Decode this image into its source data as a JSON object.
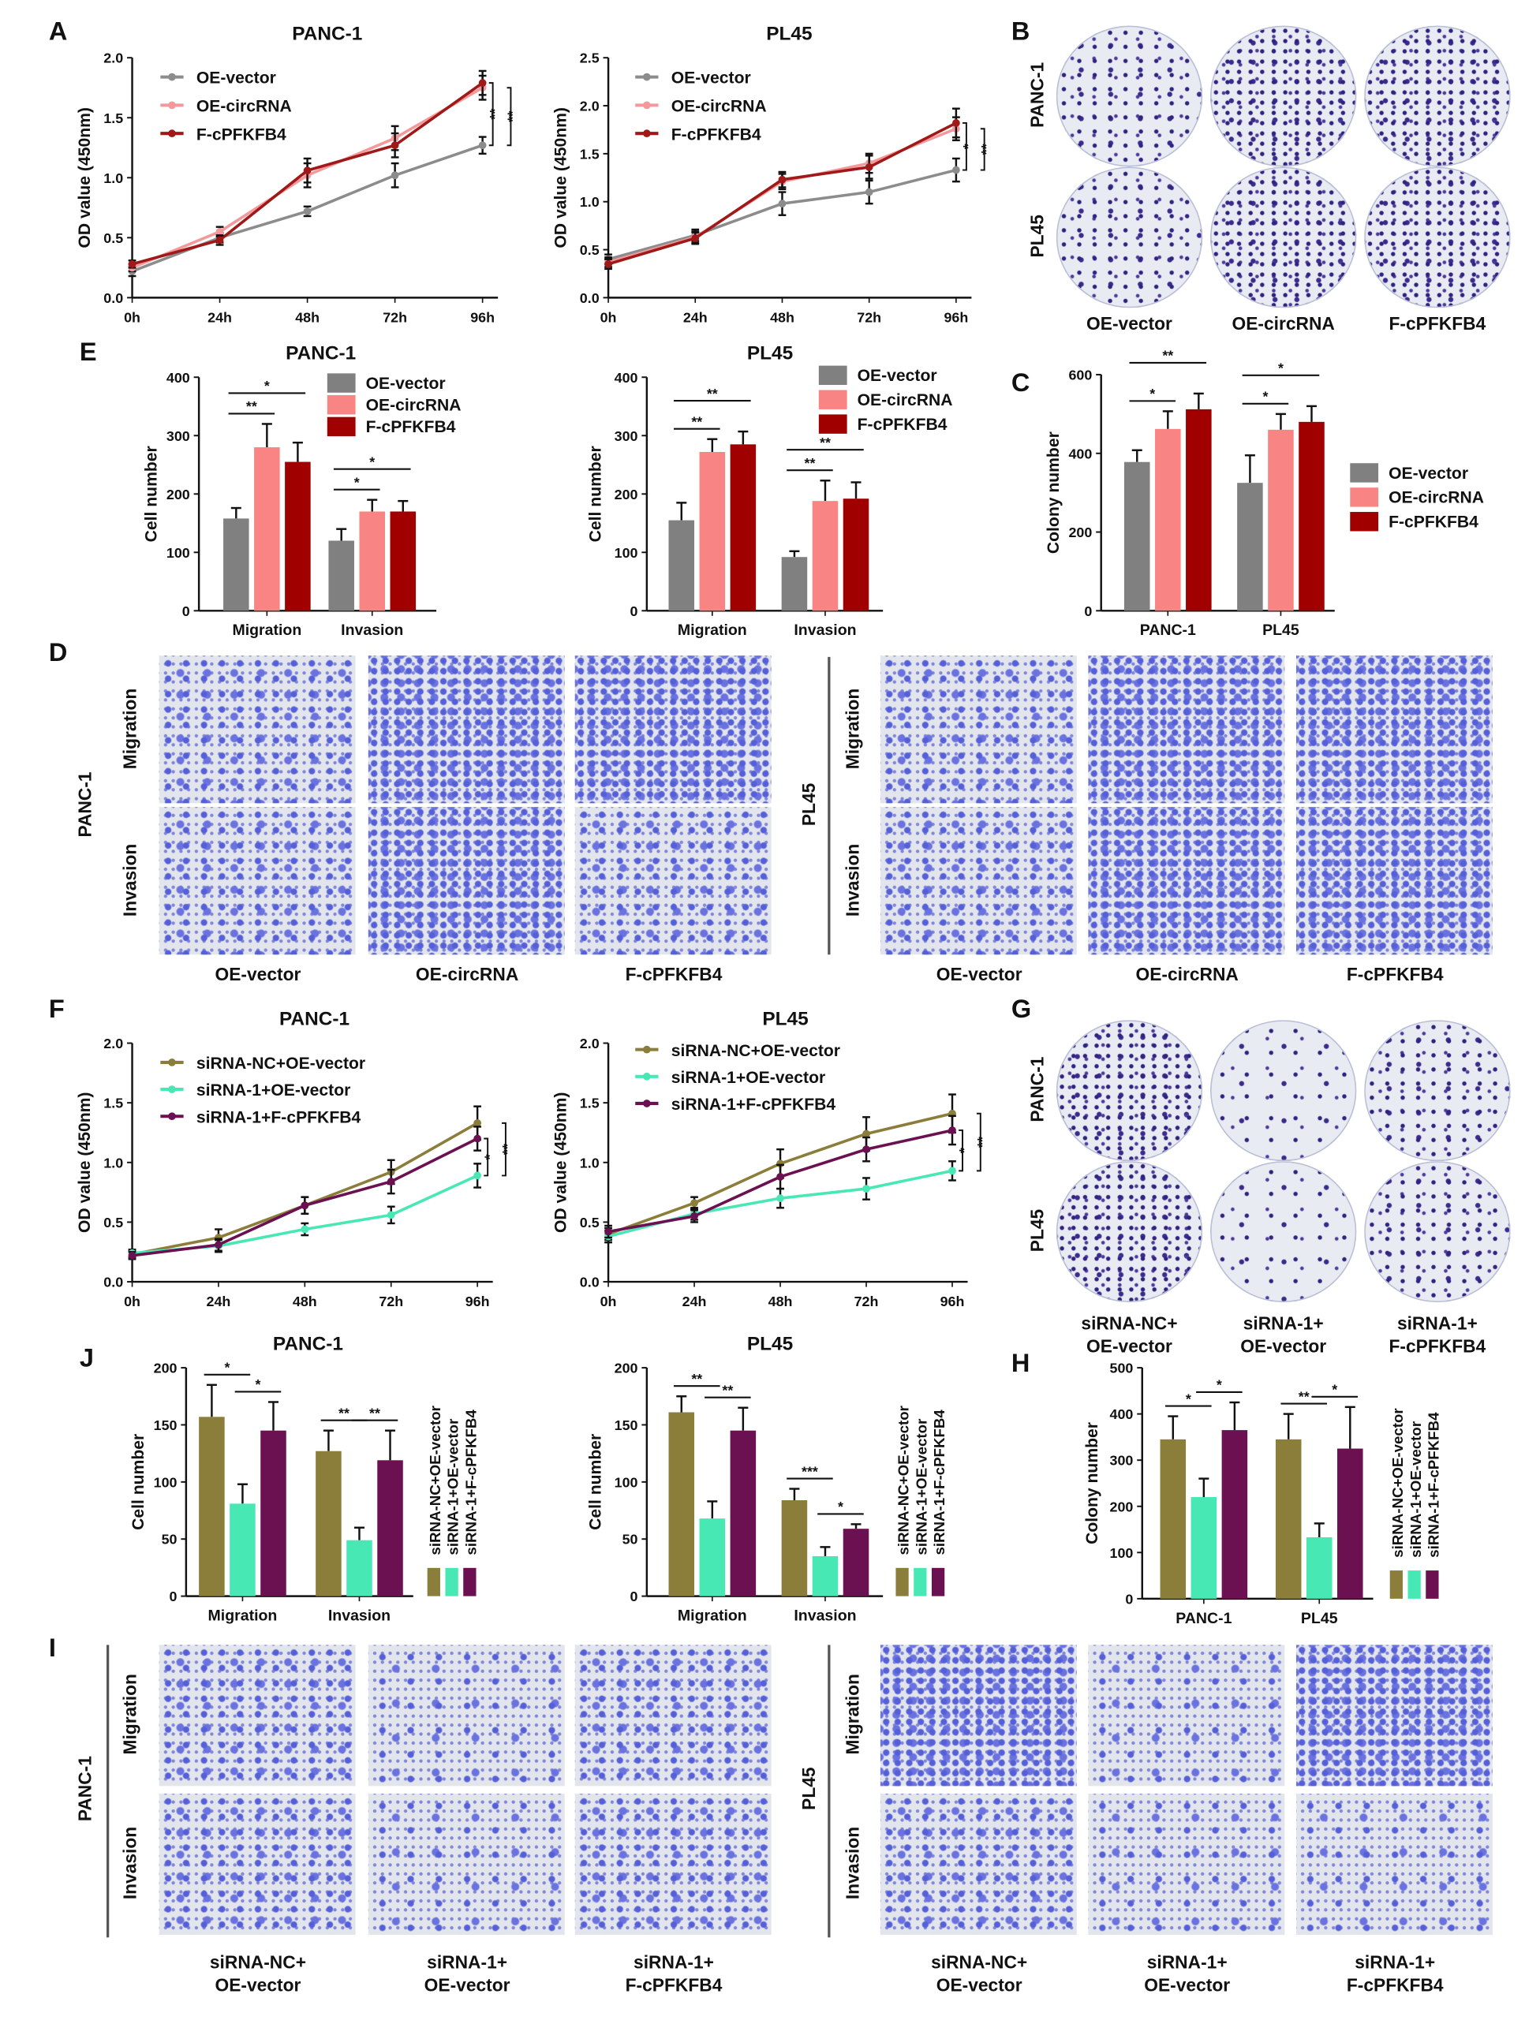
{
  "panel_labels": {
    "A": "A",
    "B": "B",
    "C": "C",
    "D": "D",
    "E": "E",
    "F": "F",
    "G": "G",
    "H": "H",
    "I": "I",
    "J": "J"
  },
  "colony_B": {
    "rows": [
      "PANC-1",
      "PL45"
    ],
    "cols": [
      [
        "OE-vector"
      ],
      [
        "OE-circRNA"
      ],
      [
        "F-cPFKFB4"
      ]
    ]
  },
  "transwell_D": {
    "left": {
      "cell": "PANC-1",
      "rows": [
        "Migration",
        "Invasion"
      ],
      "cols": [
        "OE-vector",
        "OE-circRNA",
        "F-cPFKFB4"
      ]
    },
    "right": {
      "cell": "PL45",
      "rows": [
        "Migration",
        "Invasion"
      ],
      "cols": [
        "OE-vector",
        "OE-circRNA",
        "F-cPFKFB4"
      ]
    }
  },
  "colony_G": {
    "rows": [
      "PANC-1",
      "PL45"
    ],
    "cols": [
      [
        "siRNA-NC+",
        "OE-vector"
      ],
      [
        "siRNA-1+",
        "OE-vector"
      ],
      [
        "siRNA-1+",
        "F-cPFKFB4"
      ]
    ]
  },
  "transwell_I": {
    "left": {
      "cell": "PANC-1",
      "rows": [
        "Migration",
        "Invasion"
      ],
      "cols": [
        [
          "siRNA-NC+",
          "OE-vector"
        ],
        [
          "siRNA-1+",
          "OE-vector"
        ],
        [
          "siRNA-1+",
          "F-cPFKFB4"
        ]
      ]
    },
    "right": {
      "cell": "PL45",
      "rows": [
        "Migration",
        "Invasion"
      ],
      "cols": [
        [
          "siRNA-NC+",
          "OE-vector"
        ],
        [
          "siRNA-1+",
          "OE-vector"
        ],
        [
          "siRNA-1+",
          "F-cPFKFB4"
        ]
      ]
    }
  },
  "chart_data": [
    {
      "id": "A1",
      "panel": "A",
      "type": "line",
      "title": "PANC-1",
      "ylabel": "OD value (450nm)",
      "categories": [
        "0h",
        "24h",
        "48h",
        "72h",
        "96h"
      ],
      "ylim": [
        0,
        2.0
      ],
      "yticks": [
        "0.0",
        "0.5",
        "1.0",
        "1.5",
        "2.0"
      ],
      "series": [
        {
          "name": "OE-vector",
          "color": "#8c8c8c",
          "values": [
            0.22,
            0.5,
            0.72,
            1.02,
            1.27
          ],
          "err": [
            0.04,
            0.04,
            0.04,
            0.1,
            0.07
          ]
        },
        {
          "name": "OE-circRNA",
          "color": "#f4999b",
          "values": [
            0.25,
            0.55,
            1.02,
            1.33,
            1.75
          ],
          "err": [
            0.03,
            0.04,
            0.1,
            0.1,
            0.1
          ]
        },
        {
          "name": "F-cPFKFB4",
          "color": "#a01818",
          "values": [
            0.28,
            0.48,
            1.06,
            1.27,
            1.79
          ],
          "err": [
            0.03,
            0.04,
            0.1,
            0.1,
            0.1
          ]
        }
      ],
      "significance": [
        {
          "a": 2,
          "b": 0,
          "label": "**"
        },
        {
          "a": 1,
          "b": 0,
          "label": "**"
        }
      ]
    },
    {
      "id": "A2",
      "panel": "A",
      "type": "line",
      "title": "PL45",
      "ylabel": "OD value (450nm)",
      "categories": [
        "0h",
        "24h",
        "48h",
        "72h",
        "96h"
      ],
      "ylim": [
        0,
        2.5
      ],
      "yticks": [
        "0.0",
        "0.5",
        "1.0",
        "1.5",
        "2.0",
        "2.5"
      ],
      "series": [
        {
          "name": "OE-vector",
          "color": "#8c8c8c",
          "values": [
            0.4,
            0.65,
            0.98,
            1.1,
            1.33
          ],
          "err": [
            0.05,
            0.06,
            0.12,
            0.12,
            0.12
          ]
        },
        {
          "name": "OE-circRNA",
          "color": "#f4999b",
          "values": [
            0.37,
            0.63,
            1.21,
            1.4,
            1.76
          ],
          "err": [
            0.05,
            0.06,
            0.08,
            0.1,
            0.12
          ]
        },
        {
          "name": "F-cPFKFB4",
          "color": "#a01818",
          "values": [
            0.35,
            0.62,
            1.23,
            1.36,
            1.82
          ],
          "err": [
            0.05,
            0.06,
            0.08,
            0.12,
            0.15
          ]
        }
      ],
      "significance": [
        {
          "a": 2,
          "b": 0,
          "label": "*"
        },
        {
          "a": 1,
          "b": 0,
          "label": "**"
        }
      ]
    },
    {
      "id": "E1",
      "panel": "E",
      "type": "bar",
      "title": "PANC-1",
      "ylabel": "Cell number",
      "categories": [
        "Migration",
        "Invasion"
      ],
      "ylim": [
        0,
        400
      ],
      "yticks": [
        "0",
        "100",
        "200",
        "300",
        "400"
      ],
      "legend_style": "box",
      "series": [
        {
          "name": "OE-vector",
          "color": "#808080",
          "values": [
            158,
            120
          ],
          "err": [
            18,
            20
          ]
        },
        {
          "name": "OE-circRNA",
          "color": "#f88484",
          "values": [
            280,
            170
          ],
          "err": [
            40,
            20
          ]
        },
        {
          "name": "F-cPFKFB4",
          "color": "#a00000",
          "values": [
            255,
            170
          ],
          "err": [
            33,
            18
          ]
        }
      ],
      "significance": [
        {
          "group": 0,
          "a": 0,
          "b": 1,
          "label": "**",
          "level": 0
        },
        {
          "group": 0,
          "a": 0,
          "b": 2,
          "label": "*",
          "level": 1
        },
        {
          "group": 1,
          "a": 0,
          "b": 1,
          "label": "*",
          "level": 0
        },
        {
          "group": 1,
          "a": 0,
          "b": 2,
          "label": "*",
          "level": 1
        }
      ]
    },
    {
      "id": "E2",
      "panel": "E",
      "type": "bar",
      "title": "PL45",
      "ylabel": "Cell number",
      "categories": [
        "Migration",
        "Invasion"
      ],
      "ylim": [
        0,
        400
      ],
      "yticks": [
        "0",
        "100",
        "200",
        "300",
        "400"
      ],
      "legend_style": "box",
      "series": [
        {
          "name": "OE-vector",
          "color": "#808080",
          "values": [
            155,
            92
          ],
          "err": [
            30,
            10
          ]
        },
        {
          "name": "OE-circRNA",
          "color": "#f88484",
          "values": [
            272,
            188
          ],
          "err": [
            22,
            35
          ]
        },
        {
          "name": "F-cPFKFB4",
          "color": "#a00000",
          "values": [
            285,
            192
          ],
          "err": [
            22,
            28
          ]
        }
      ],
      "significance": [
        {
          "group": 0,
          "a": 0,
          "b": 1,
          "label": "**",
          "level": 0
        },
        {
          "group": 0,
          "a": 0,
          "b": 2,
          "label": "**",
          "level": 1
        },
        {
          "group": 1,
          "a": 0,
          "b": 1,
          "label": "**",
          "level": 0
        },
        {
          "group": 1,
          "a": 0,
          "b": 2,
          "label": "**",
          "level": 1
        }
      ]
    },
    {
      "id": "C",
      "panel": "C",
      "type": "bar",
      "title": "",
      "ylabel": "Colony number",
      "categories": [
        "PANC-1",
        "PL45"
      ],
      "ylim": [
        0,
        600
      ],
      "yticks": [
        "0",
        "200",
        "400",
        "600"
      ],
      "legend_style": "box",
      "series": [
        {
          "name": "OE-vector",
          "color": "#808080",
          "values": [
            378,
            325
          ],
          "err": [
            30,
            70
          ]
        },
        {
          "name": "OE-circRNA",
          "color": "#f88484",
          "values": [
            462,
            460
          ],
          "err": [
            45,
            40
          ]
        },
        {
          "name": "F-cPFKFB4",
          "color": "#a00000",
          "values": [
            512,
            480
          ],
          "err": [
            40,
            40
          ]
        }
      ],
      "significance": [
        {
          "group": 0,
          "a": 0,
          "b": 1,
          "label": "*",
          "level": 0
        },
        {
          "group": 0,
          "a": 0,
          "b": 2,
          "label": "**",
          "level": 1
        },
        {
          "group": 1,
          "a": 0,
          "b": 1,
          "label": "*",
          "level": 0
        },
        {
          "group": 1,
          "a": 0,
          "b": 2,
          "label": "*",
          "level": 1
        }
      ]
    },
    {
      "id": "F1",
      "panel": "F",
      "type": "line",
      "title": "PANC-1",
      "ylabel": "OD value (450nm)",
      "categories": [
        "0h",
        "24h",
        "48h",
        "72h",
        "96h"
      ],
      "ylim": [
        0,
        2.0
      ],
      "yticks": [
        "0.0",
        "0.5",
        "1.0",
        "1.5",
        "2.0"
      ],
      "series": [
        {
          "name": "siRNA-NC+OE-vector",
          "color": "#8b7d3a",
          "values": [
            0.23,
            0.37,
            0.64,
            0.92,
            1.33
          ],
          "err": [
            0.03,
            0.07,
            0.07,
            0.1,
            0.14
          ]
        },
        {
          "name": "siRNA-1+OE-vector",
          "color": "#48e8b4",
          "values": [
            0.24,
            0.3,
            0.44,
            0.56,
            0.89
          ],
          "err": [
            0.03,
            0.05,
            0.05,
            0.07,
            0.1
          ]
        },
        {
          "name": "siRNA-1+F-cPFKFB4",
          "color": "#6b1050",
          "values": [
            0.22,
            0.31,
            0.64,
            0.84,
            1.2
          ],
          "err": [
            0.03,
            0.05,
            0.07,
            0.1,
            0.1
          ]
        }
      ],
      "significance": [
        {
          "a": 2,
          "b": 1,
          "label": "*"
        },
        {
          "a": 0,
          "b": 1,
          "label": "**"
        }
      ]
    },
    {
      "id": "F2",
      "panel": "F",
      "type": "line",
      "title": "PL45",
      "ylabel": "OD value (450nm)",
      "categories": [
        "0h",
        "24h",
        "48h",
        "72h",
        "96h"
      ],
      "ylim": [
        0,
        2.0
      ],
      "yticks": [
        "0.0",
        "0.5",
        "1.0",
        "1.5",
        "2.0"
      ],
      "series": [
        {
          "name": "siRNA-NC+OE-vector",
          "color": "#8b7d3a",
          "values": [
            0.4,
            0.66,
            0.99,
            1.24,
            1.41
          ],
          "err": [
            0.05,
            0.05,
            0.12,
            0.14,
            0.16
          ]
        },
        {
          "name": "siRNA-1+OE-vector",
          "color": "#48e8b4",
          "values": [
            0.38,
            0.57,
            0.7,
            0.78,
            0.93
          ],
          "err": [
            0.05,
            0.05,
            0.08,
            0.09,
            0.08
          ]
        },
        {
          "name": "siRNA-1+F-cPFKFB4",
          "color": "#6b1050",
          "values": [
            0.42,
            0.55,
            0.88,
            1.11,
            1.27
          ],
          "err": [
            0.05,
            0.05,
            0.1,
            0.1,
            0.12
          ]
        }
      ],
      "significance": [
        {
          "a": 2,
          "b": 1,
          "label": "*"
        },
        {
          "a": 0,
          "b": 1,
          "label": "**"
        }
      ]
    },
    {
      "id": "J1",
      "panel": "J",
      "type": "bar",
      "title": "PANC-1",
      "ylabel": "Cell number",
      "categories": [
        "Migration",
        "Invasion"
      ],
      "ylim": [
        0,
        200
      ],
      "yticks": [
        "0",
        "50",
        "100",
        "150",
        "200"
      ],
      "legend_style": "rotated",
      "series": [
        {
          "name": "siRNA-NC+OE-vector",
          "color": "#8b7d3a",
          "values": [
            157,
            127
          ],
          "err": [
            28,
            18
          ]
        },
        {
          "name": "siRNA-1+OE-vector",
          "color": "#48e8b4",
          "values": [
            81,
            49
          ],
          "err": [
            17,
            11
          ]
        },
        {
          "name": "siRNA-1+F-cPFKFB4",
          "color": "#6b1050",
          "values": [
            145,
            119
          ],
          "err": [
            25,
            26
          ]
        }
      ],
      "significance": [
        {
          "group": 0,
          "a": 0,
          "b": 1,
          "label": "*",
          "level": 0
        },
        {
          "group": 0,
          "a": 1,
          "b": 2,
          "label": "*",
          "level": 0
        },
        {
          "group": 1,
          "a": 0,
          "b": 1,
          "label": "**",
          "level": 0
        },
        {
          "group": 1,
          "a": 1,
          "b": 2,
          "label": "**",
          "level": 0
        }
      ]
    },
    {
      "id": "J2",
      "panel": "J",
      "type": "bar",
      "title": "PL45",
      "ylabel": "Cell number",
      "categories": [
        "Migration",
        "Invasion"
      ],
      "ylim": [
        0,
        200
      ],
      "yticks": [
        "0",
        "50",
        "100",
        "150",
        "200"
      ],
      "legend_style": "rotated",
      "series": [
        {
          "name": "siRNA-NC+OE-vector",
          "color": "#8b7d3a",
          "values": [
            161,
            84
          ],
          "err": [
            14,
            10
          ]
        },
        {
          "name": "siRNA-1+OE-vector",
          "color": "#48e8b4",
          "values": [
            68,
            35
          ],
          "err": [
            15,
            8
          ]
        },
        {
          "name": "siRNA-1+F-cPFKFB4",
          "color": "#6b1050",
          "values": [
            145,
            59
          ],
          "err": [
            20,
            4
          ]
        }
      ],
      "significance": [
        {
          "group": 0,
          "a": 0,
          "b": 1,
          "label": "**",
          "level": 0
        },
        {
          "group": 0,
          "a": 1,
          "b": 2,
          "label": "**",
          "level": 0
        },
        {
          "group": 1,
          "a": 0,
          "b": 1,
          "label": "***",
          "level": 0
        },
        {
          "group": 1,
          "a": 1,
          "b": 2,
          "label": "*",
          "level": 0
        }
      ]
    },
    {
      "id": "H",
      "panel": "H",
      "type": "bar",
      "title": "",
      "ylabel": "Colony number",
      "categories": [
        "PANC-1",
        "PL45"
      ],
      "ylim": [
        0,
        500
      ],
      "yticks": [
        "0",
        "100",
        "200",
        "300",
        "400",
        "500"
      ],
      "legend_style": "rotated",
      "series": [
        {
          "name": "siRNA-NC+OE-vector",
          "color": "#8b7d3a",
          "values": [
            345,
            345
          ],
          "err": [
            50,
            55
          ]
        },
        {
          "name": "siRNA-1+OE-vector",
          "color": "#48e8b4",
          "values": [
            220,
            133
          ],
          "err": [
            40,
            30
          ]
        },
        {
          "name": "siRNA-1+F-cPFKFB4",
          "color": "#6b1050",
          "values": [
            365,
            325
          ],
          "err": [
            60,
            90
          ]
        }
      ],
      "significance": [
        {
          "group": 0,
          "a": 0,
          "b": 1,
          "label": "*",
          "level": 0
        },
        {
          "group": 0,
          "a": 1,
          "b": 2,
          "label": "*",
          "level": 0
        },
        {
          "group": 1,
          "a": 0,
          "b": 1,
          "label": "**",
          "level": 0
        },
        {
          "group": 1,
          "a": 1,
          "b": 2,
          "label": "*",
          "level": 0
        }
      ]
    }
  ]
}
